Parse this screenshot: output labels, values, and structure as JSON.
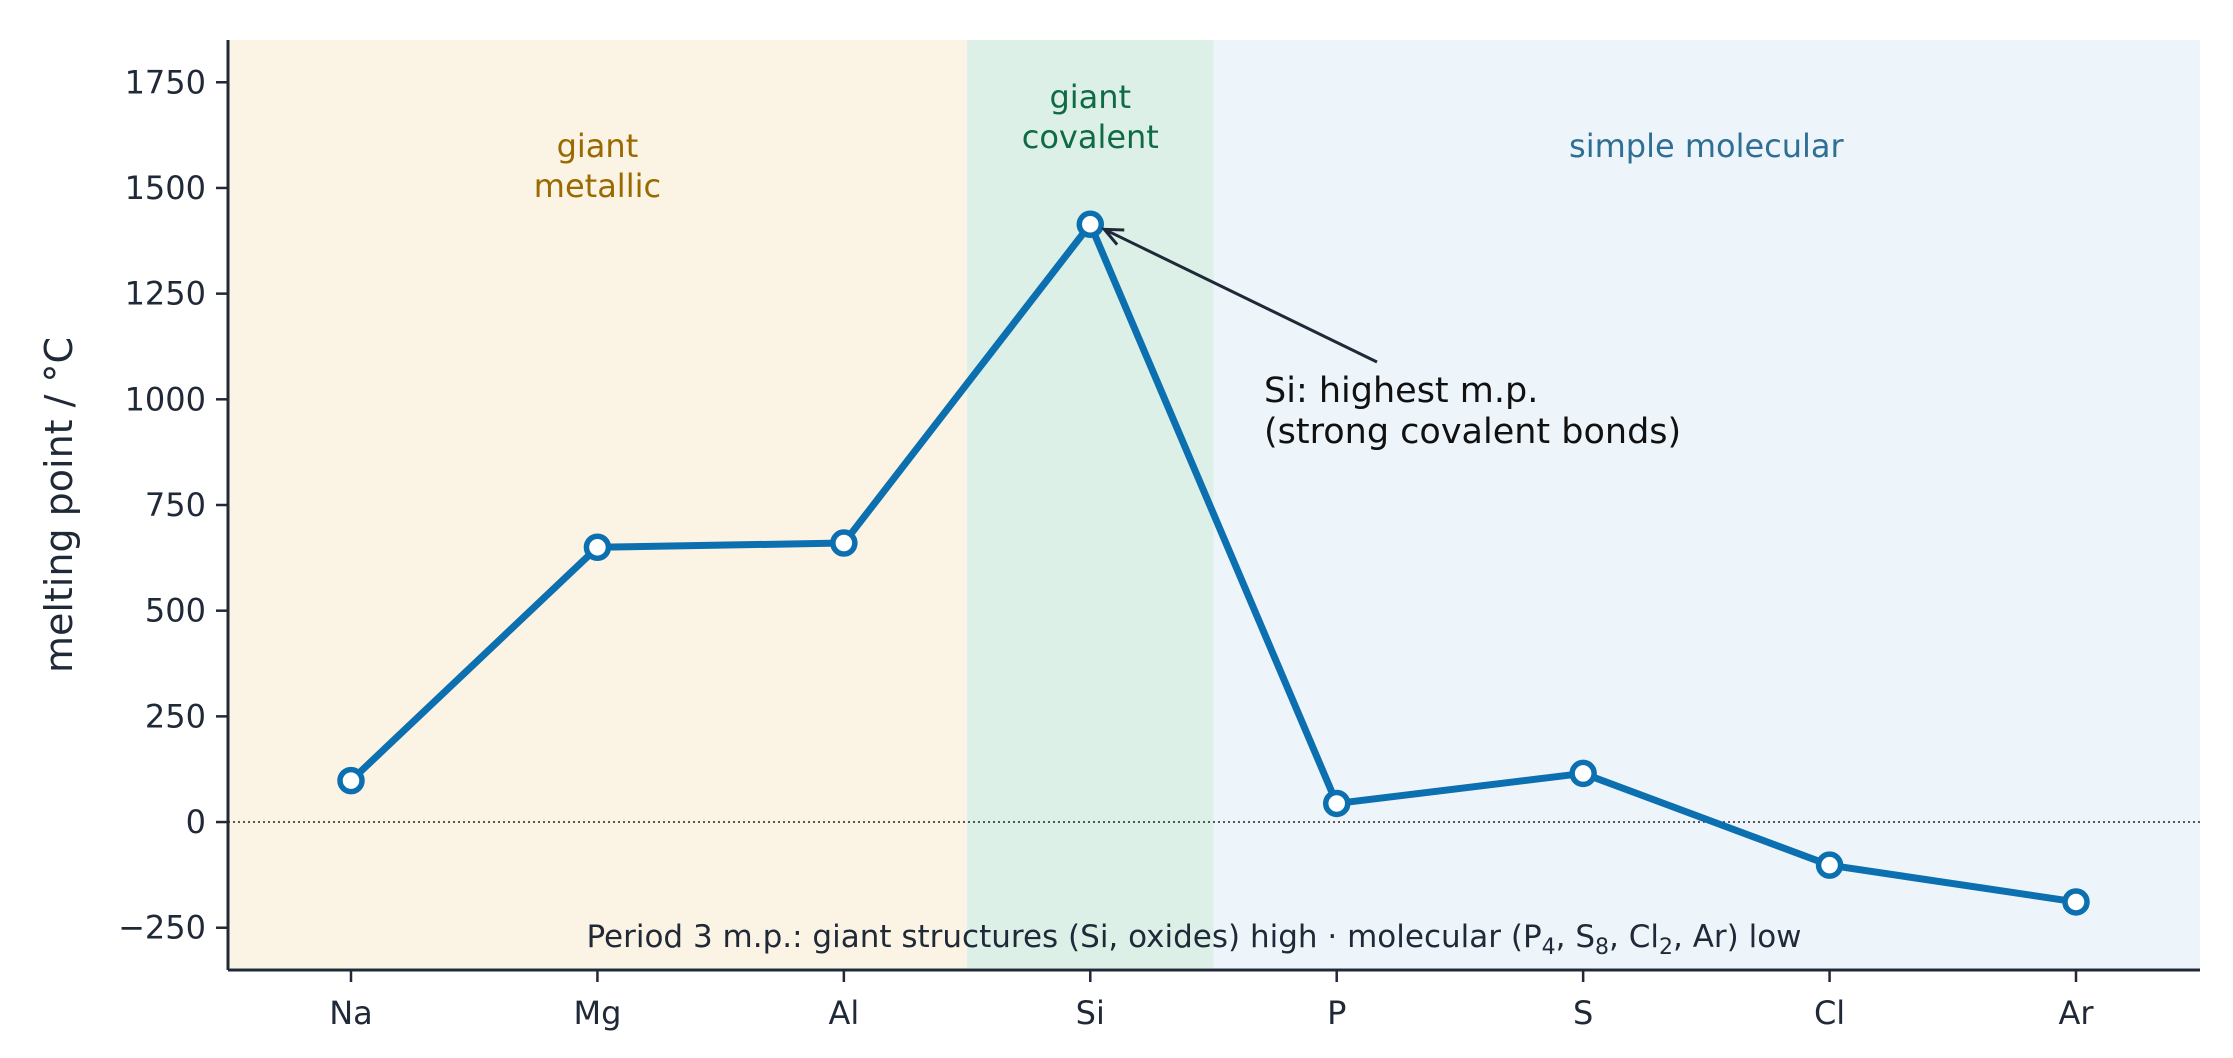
{
  "chart_data": {
    "type": "line",
    "categories": [
      "Na",
      "Mg",
      "Al",
      "Si",
      "P",
      "S",
      "Cl",
      "Ar"
    ],
    "values": [
      98,
      650,
      660,
      1414,
      44,
      115,
      -102,
      -189
    ],
    "ylabel": "melting point / °C",
    "ylim": [
      -350,
      1850
    ],
    "yticks": [
      1750,
      1500,
      1250,
      1000,
      750,
      500,
      250,
      0,
      -250
    ],
    "ytick_labels": [
      "1750",
      "1500",
      "1250",
      "1000",
      "750",
      "500",
      "250",
      "0",
      "−250"
    ],
    "reference_line": {
      "y": 0,
      "style": "dotted"
    },
    "series_color": "#0b6fb0",
    "regions": [
      {
        "lines": [
          "giant",
          "metallic"
        ],
        "from": "Na",
        "to": "Al",
        "fill": "#fbf3e4",
        "text_color": "#9a6a00"
      },
      {
        "lines": [
          "giant",
          "covalent"
        ],
        "from": "Si",
        "to": "Si",
        "fill": "#dcf0e8",
        "text_color": "#0f6b45"
      },
      {
        "lines": [
          "simple molecular"
        ],
        "from": "P",
        "to": "Ar",
        "fill": "#edf5fb",
        "text_color": "#2f6f93"
      }
    ],
    "annotation": {
      "lines": [
        "Si: highest m.p.",
        "(strong covalent bonds)"
      ],
      "target_category": "Si"
    },
    "footnote_parts": [
      {
        "t": "Period 3 m.p.: giant structures (Si, oxides) high  ·  molecular (P"
      },
      {
        "t": "4",
        "sub": true
      },
      {
        "t": ", S"
      },
      {
        "t": "8",
        "sub": true
      },
      {
        "t": ", Cl"
      },
      {
        "t": "2",
        "sub": true
      },
      {
        "t": ", Ar) low"
      }
    ]
  }
}
